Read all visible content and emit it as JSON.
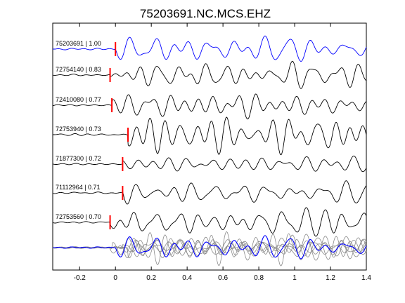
{
  "chart_data": {
    "type": "line",
    "title": "75203691.NC.MCS.EHZ",
    "xlabel": "",
    "ylabel": "",
    "xlim": [
      -0.35,
      1.4
    ],
    "x_ticks": [
      "-0.2",
      "0",
      "0.2",
      "0.4",
      "0.6",
      "0.8",
      "1",
      "1.2",
      "1.4"
    ],
    "x_tick_values": [
      -0.2,
      0,
      0.2,
      0.4,
      0.6,
      0.8,
      1.0,
      1.2,
      1.4
    ],
    "grid": false,
    "legend": "none",
    "colors": {
      "reference": "#0000ff",
      "trace": "#000000",
      "pick": "#ff0000",
      "stack": "#8a8a8a"
    },
    "series": [
      {
        "name": "75203691 | 1.00",
        "id": "75203691",
        "cc": "1.00",
        "pick_time": 0.0,
        "is_reference": true
      },
      {
        "name": "72754140 | 0.83",
        "id": "72754140",
        "cc": "0.83",
        "pick_time": -0.03,
        "is_reference": false
      },
      {
        "name": "72410080 | 0.77",
        "id": "72410080",
        "cc": "0.77",
        "pick_time": -0.02,
        "is_reference": false
      },
      {
        "name": "72753940 | 0.73",
        "id": "72753940",
        "cc": "0.73",
        "pick_time": 0.07,
        "is_reference": false
      },
      {
        "name": "71877300 | 0.72",
        "id": "71877300",
        "cc": "0.72",
        "pick_time": 0.04,
        "is_reference": false
      },
      {
        "name": "71112964 | 0.71",
        "id": "71112964",
        "cc": "0.71",
        "pick_time": 0.04,
        "is_reference": false
      },
      {
        "name": "72753560 | 0.70",
        "id": "72753560",
        "cc": "0.70",
        "pick_time": -0.03,
        "is_reference": false
      }
    ],
    "overlay": {
      "description_visible": false,
      "includes_all_traces": true
    }
  }
}
